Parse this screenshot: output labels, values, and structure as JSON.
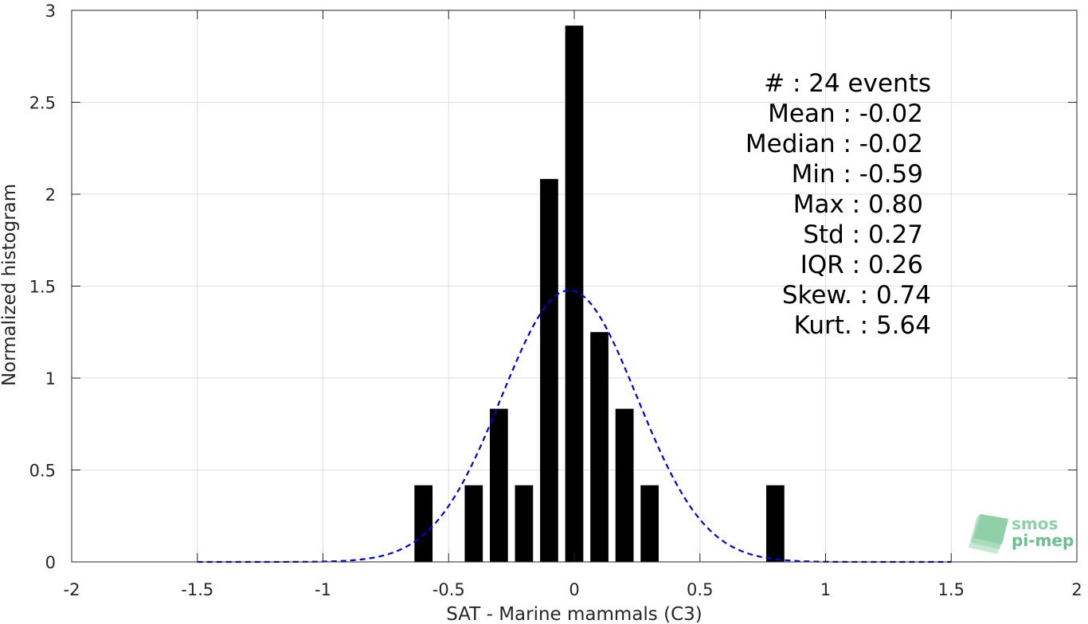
{
  "chart_data": {
    "type": "bar",
    "title": "",
    "xlabel": "SAT - Marine mammals (C3)",
    "ylabel": "Normalized histogram",
    "xlim": [
      -2,
      2
    ],
    "ylim": [
      0,
      3
    ],
    "grid": true,
    "xticks": [
      -2,
      -1.5,
      -1,
      -0.5,
      0,
      0.5,
      1,
      1.5,
      2
    ],
    "xtick_labels": [
      "-2",
      "-1.5",
      "-1",
      "-0.5",
      "0",
      "0.5",
      "1",
      "1.5",
      "2"
    ],
    "yticks": [
      0,
      0.5,
      1,
      1.5,
      2,
      2.5,
      3
    ],
    "ytick_labels": [
      "0",
      "0.5",
      "1",
      "1.5",
      "2",
      "2.5",
      "3"
    ],
    "bar_color": "#000000",
    "bars": {
      "centers": [
        -0.6,
        -0.4,
        -0.3,
        -0.2,
        -0.1,
        0.0,
        0.1,
        0.2,
        0.3,
        0.8
      ],
      "values": [
        0.417,
        0.417,
        0.833,
        0.417,
        2.083,
        2.917,
        1.25,
        0.833,
        0.417,
        0.417
      ],
      "bin_width": 0.1
    },
    "fit_curve": {
      "style": "dashed",
      "color": "#0000e0",
      "mean": -0.02,
      "std": 0.27,
      "x_range": [
        -1.5,
        1.5
      ]
    },
    "annotations": [
      "#  : 24 events",
      "Mean : -0.02",
      "Median : -0.02",
      "Min : -0.59",
      "Max : 0.80",
      "Std : 0.27",
      "IQR : 0.26",
      "Skew. : 0.74",
      "Kurt. : 5.64"
    ]
  },
  "logo": {
    "line1": "smos",
    "line2": "pi-mep",
    "color1": "#8fd0a8",
    "color2": "#6bbf8e"
  }
}
